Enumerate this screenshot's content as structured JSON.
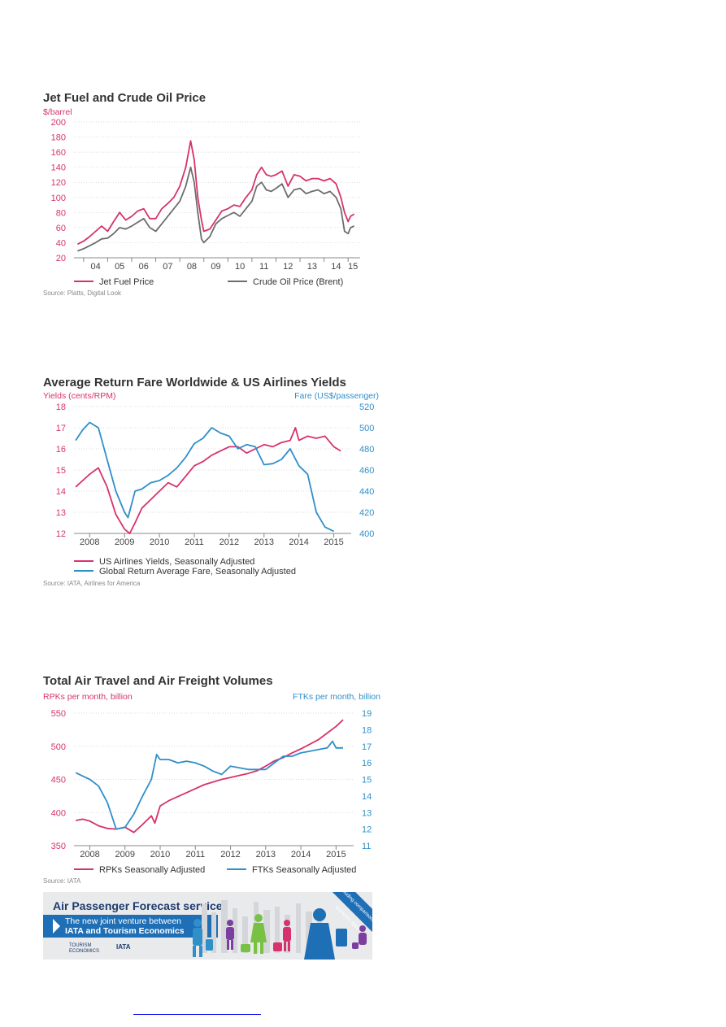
{
  "chart_data": [
    {
      "type": "line",
      "title": "Jet Fuel and Crude Oil Price",
      "ylabel": "$/barrel",
      "ylim": [
        20,
        200
      ],
      "yticks": [
        20,
        40,
        60,
        80,
        100,
        120,
        140,
        160,
        180,
        200
      ],
      "xlim": [
        2003.6,
        2015.5
      ],
      "xticks": [
        {
          "v": 2004.5,
          "label": "04"
        },
        {
          "v": 2005.5,
          "label": "05"
        },
        {
          "v": 2006.5,
          "label": "06"
        },
        {
          "v": 2007.5,
          "label": "07"
        },
        {
          "v": 2008.5,
          "label": "08"
        },
        {
          "v": 2009.5,
          "label": "09"
        },
        {
          "v": 2010.5,
          "label": "10"
        },
        {
          "v": 2011.5,
          "label": "11"
        },
        {
          "v": 2012.5,
          "label": "12"
        },
        {
          "v": 2013.5,
          "label": "13"
        },
        {
          "v": 2014.5,
          "label": "14"
        },
        {
          "v": 2015.2,
          "label": "15"
        }
      ],
      "grid": true,
      "legend_position": "bottom",
      "source": "Source: Platts, Digital Look",
      "series": [
        {
          "name": "Jet Fuel Price",
          "color": "#d6336c",
          "axis": "left",
          "x": [
            2003.75,
            2004.0,
            2004.25,
            2004.5,
            2004.75,
            2005.0,
            2005.25,
            2005.5,
            2005.75,
            2006.0,
            2006.25,
            2006.5,
            2006.75,
            2007.0,
            2007.25,
            2007.5,
            2007.75,
            2008.0,
            2008.25,
            2008.45,
            2008.6,
            2008.75,
            2008.9,
            2009.0,
            2009.25,
            2009.5,
            2009.75,
            2010.0,
            2010.25,
            2010.5,
            2010.75,
            2011.0,
            2011.2,
            2011.4,
            2011.6,
            2011.8,
            2012.0,
            2012.25,
            2012.5,
            2012.75,
            2013.0,
            2013.25,
            2013.5,
            2013.75,
            2014.0,
            2014.25,
            2014.5,
            2014.7,
            2014.85,
            2015.0,
            2015.1,
            2015.25
          ],
          "values": [
            38,
            42,
            48,
            55,
            62,
            55,
            68,
            80,
            70,
            75,
            82,
            85,
            72,
            72,
            85,
            92,
            100,
            115,
            140,
            175,
            150,
            100,
            70,
            55,
            58,
            70,
            82,
            85,
            90,
            88,
            100,
            110,
            130,
            140,
            130,
            128,
            130,
            135,
            115,
            130,
            128,
            122,
            125,
            125,
            122,
            125,
            118,
            100,
            80,
            68,
            75,
            78
          ]
        },
        {
          "name": "Crude Oil Price (Brent)",
          "color": "#6d6d6d",
          "axis": "left",
          "x": [
            2003.75,
            2004.0,
            2004.25,
            2004.5,
            2004.75,
            2005.0,
            2005.25,
            2005.5,
            2005.75,
            2006.0,
            2006.25,
            2006.5,
            2006.75,
            2007.0,
            2007.25,
            2007.5,
            2007.75,
            2008.0,
            2008.25,
            2008.45,
            2008.6,
            2008.75,
            2008.9,
            2009.0,
            2009.25,
            2009.5,
            2009.75,
            2010.0,
            2010.25,
            2010.5,
            2010.75,
            2011.0,
            2011.2,
            2011.4,
            2011.6,
            2011.8,
            2012.0,
            2012.25,
            2012.5,
            2012.75,
            2013.0,
            2013.25,
            2013.5,
            2013.75,
            2014.0,
            2014.25,
            2014.5,
            2014.7,
            2014.85,
            2015.0,
            2015.1,
            2015.25
          ],
          "values": [
            29,
            32,
            36,
            40,
            45,
            46,
            52,
            60,
            58,
            62,
            67,
            72,
            60,
            55,
            65,
            75,
            85,
            95,
            115,
            140,
            120,
            80,
            45,
            40,
            48,
            65,
            72,
            76,
            80,
            75,
            85,
            95,
            115,
            120,
            110,
            108,
            112,
            118,
            100,
            110,
            112,
            105,
            108,
            110,
            105,
            108,
            100,
            85,
            55,
            52,
            60,
            62
          ]
        }
      ]
    },
    {
      "type": "line",
      "title": "Average Return Fare Worldwide & US Airlines Yields",
      "ylabel": "Yields (cents/RPM)",
      "y2label": "Fare (US$/passenger)",
      "ylim": [
        12,
        18
      ],
      "y2lim": [
        400,
        520
      ],
      "yticks": [
        12,
        13,
        14,
        15,
        16,
        17,
        18
      ],
      "y2ticks": [
        400,
        420,
        440,
        460,
        480,
        500,
        520
      ],
      "xlim": [
        2007.55,
        2015.5
      ],
      "xticks": [
        {
          "v": 2008,
          "label": "2008"
        },
        {
          "v": 2009,
          "label": "2009"
        },
        {
          "v": 2010,
          "label": "2010"
        },
        {
          "v": 2011,
          "label": "2011"
        },
        {
          "v": 2012,
          "label": "2012"
        },
        {
          "v": 2013,
          "label": "2013"
        },
        {
          "v": 2014,
          "label": "2014"
        },
        {
          "v": 2015,
          "label": "2015"
        }
      ],
      "grid": true,
      "legend_position": "bottom",
      "source": "Source: IATA, Airlines for America",
      "series": [
        {
          "name": "US Airlines Yields, Seasonally Adjusted",
          "color": "#d6336c",
          "axis": "left",
          "x": [
            2007.6,
            2007.8,
            2008.0,
            2008.25,
            2008.5,
            2008.75,
            2009.0,
            2009.15,
            2009.3,
            2009.5,
            2009.75,
            2010.0,
            2010.25,
            2010.5,
            2010.75,
            2011.0,
            2011.25,
            2011.5,
            2011.75,
            2012.0,
            2012.25,
            2012.5,
            2012.75,
            2013.0,
            2013.25,
            2013.5,
            2013.75,
            2013.9,
            2014.0,
            2014.25,
            2014.5,
            2014.75,
            2015.0,
            2015.2
          ],
          "values": [
            14.2,
            14.5,
            14.8,
            15.1,
            14.2,
            12.9,
            12.2,
            12.0,
            12.5,
            13.2,
            13.6,
            14.0,
            14.4,
            14.2,
            14.7,
            15.2,
            15.4,
            15.7,
            15.9,
            16.1,
            16.1,
            15.8,
            16.0,
            16.2,
            16.1,
            16.3,
            16.4,
            17.0,
            16.4,
            16.6,
            16.5,
            16.6,
            16.1,
            15.9
          ]
        },
        {
          "name": "Global Return Average Fare,  Seasonally Adjusted",
          "color": "#2f8fc9",
          "axis": "right",
          "x": [
            2007.6,
            2007.8,
            2008.0,
            2008.25,
            2008.5,
            2008.75,
            2009.0,
            2009.1,
            2009.3,
            2009.5,
            2009.75,
            2010.0,
            2010.25,
            2010.5,
            2010.75,
            2011.0,
            2011.25,
            2011.5,
            2011.75,
            2012.0,
            2012.25,
            2012.5,
            2012.75,
            2013.0,
            2013.25,
            2013.5,
            2013.75,
            2014.0,
            2014.25,
            2014.5,
            2014.75,
            2015.0
          ],
          "values": [
            488,
            498,
            505,
            500,
            470,
            440,
            420,
            415,
            440,
            442,
            448,
            450,
            455,
            462,
            472,
            485,
            490,
            500,
            495,
            492,
            480,
            484,
            482,
            465,
            466,
            470,
            480,
            464,
            456,
            420,
            406,
            402
          ]
        }
      ]
    },
    {
      "type": "line",
      "title": "Total Air Travel and Air Freight Volumes",
      "ylabel": "RPKs per month, billion",
      "y2label": "FTKs per month, billion",
      "ylim": [
        350,
        550
      ],
      "y2lim": [
        11,
        19
      ],
      "yticks": [
        350,
        400,
        450,
        500,
        550
      ],
      "y2ticks": [
        11,
        12,
        13,
        14,
        15,
        16,
        17,
        18,
        19
      ],
      "xlim": [
        2007.55,
        2015.5
      ],
      "xticks": [
        {
          "v": 2008,
          "label": "2008"
        },
        {
          "v": 2009,
          "label": "2009"
        },
        {
          "v": 2010,
          "label": "2010"
        },
        {
          "v": 2011,
          "label": "2011"
        },
        {
          "v": 2012,
          "label": "2012"
        },
        {
          "v": 2013,
          "label": "2013"
        },
        {
          "v": 2014,
          "label": "2014"
        },
        {
          "v": 2015,
          "label": "2015"
        }
      ],
      "grid": true,
      "legend_position": "bottom",
      "source": "Source: IATA",
      "series": [
        {
          "name": "RPKs Seasonally Adjusted",
          "color": "#d6336c",
          "axis": "left",
          "x": [
            2007.6,
            2007.8,
            2008.0,
            2008.25,
            2008.5,
            2008.75,
            2009.0,
            2009.25,
            2009.5,
            2009.75,
            2009.85,
            2010.0,
            2010.25,
            2010.5,
            2010.75,
            2011.0,
            2011.25,
            2011.5,
            2011.75,
            2012.0,
            2012.25,
            2012.5,
            2012.75,
            2013.0,
            2013.25,
            2013.5,
            2013.75,
            2014.0,
            2014.25,
            2014.5,
            2014.75,
            2015.0,
            2015.2
          ],
          "values": [
            388,
            390,
            387,
            380,
            376,
            375,
            378,
            370,
            382,
            395,
            384,
            410,
            418,
            424,
            430,
            436,
            442,
            446,
            450,
            453,
            456,
            459,
            463,
            470,
            478,
            483,
            490,
            496,
            503,
            510,
            520,
            530,
            540
          ]
        },
        {
          "name": "FTKs Seasonally Adjusted",
          "color": "#2f8fc9",
          "axis": "right",
          "x": [
            2007.6,
            2007.8,
            2008.0,
            2008.25,
            2008.5,
            2008.75,
            2009.0,
            2009.25,
            2009.5,
            2009.75,
            2009.9,
            2010.0,
            2010.25,
            2010.5,
            2010.75,
            2011.0,
            2011.25,
            2011.5,
            2011.75,
            2012.0,
            2012.25,
            2012.5,
            2012.75,
            2013.0,
            2013.25,
            2013.5,
            2013.75,
            2014.0,
            2014.25,
            2014.5,
            2014.75,
            2014.9,
            2015.0,
            2015.2
          ],
          "values": [
            15.4,
            15.2,
            15.0,
            14.6,
            13.6,
            12.0,
            12.1,
            12.9,
            14.0,
            15.0,
            16.5,
            16.2,
            16.2,
            16.0,
            16.1,
            16.0,
            15.8,
            15.5,
            15.3,
            15.8,
            15.7,
            15.6,
            15.6,
            15.6,
            16.0,
            16.4,
            16.4,
            16.6,
            16.7,
            16.8,
            16.9,
            17.3,
            16.9,
            16.9
          ]
        }
      ]
    }
  ],
  "banner": {
    "title": "Air Passenger Forecast service",
    "subtitle_line1": "The new joint venture between",
    "subtitle_line2": "IATA and Tourism Economics",
    "logo_left": "TOURISM ECONOMICS",
    "logo_right": "IATA",
    "ribbon": "Including comparisons to economic data",
    "colors": {
      "navy": "#1d3c6e",
      "blue": "#1f6fb6",
      "figure_colors": [
        "#2f8fc9",
        "#7b3fa0",
        "#79c143",
        "#d6336c",
        "#1f6fb6"
      ]
    }
  }
}
